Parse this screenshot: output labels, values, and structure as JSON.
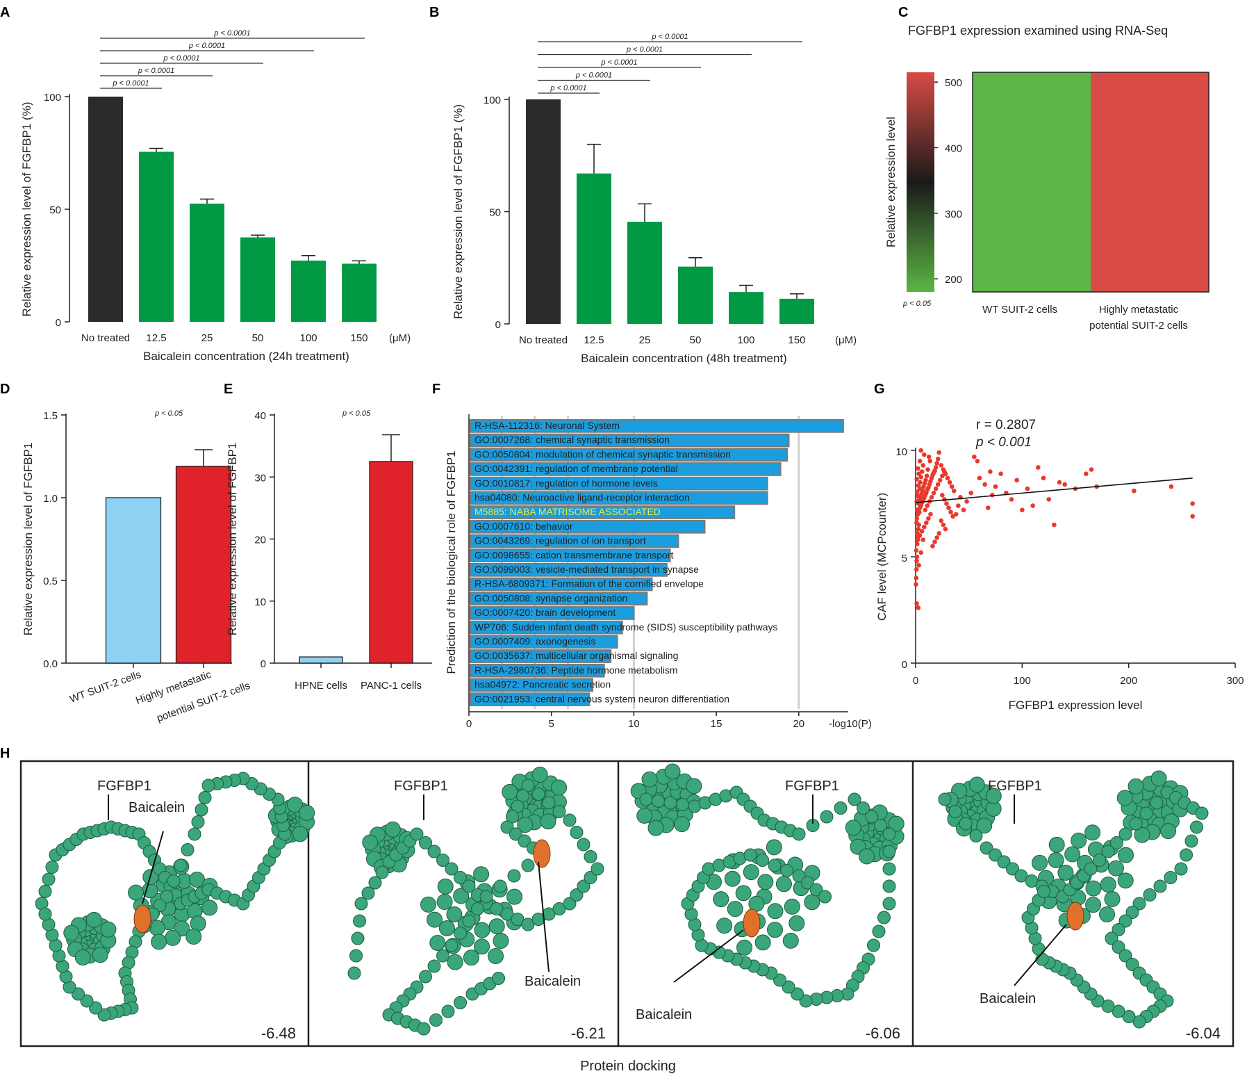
{
  "colors": {
    "black_bar": "#2b2b2b",
    "green_bar": "#009a44",
    "light_blue": "#8fd3f4",
    "red": "#e0222a",
    "go_bar": "#1a9ee0",
    "heat_green": "#5cb544",
    "heat_red": "#d94b45",
    "scatter": "#e8392c",
    "protein": "#3aa67a",
    "ligand": "#e0702a",
    "green_label": "#1e9a3a",
    "orange_label": "#d06a24"
  },
  "chart_data": [
    {
      "id": "A",
      "panel_label": "A",
      "type": "bar",
      "categories": [
        "No treated",
        "12.5",
        "25",
        "50",
        "100",
        "150"
      ],
      "unit": "(μM)",
      "values": [
        100,
        75.5,
        52.5,
        37.5,
        27.2,
        25.8
      ],
      "errors": [
        0,
        1.5,
        2,
        1,
        2.2,
        1.3
      ],
      "xlabel": "Baicalein concentration (24h treatment)",
      "ylabel": "Relative expression level of FGFBP1 (%)",
      "ylim": [
        0,
        100
      ],
      "yticks": [
        "0",
        "50",
        "100"
      ],
      "sig_label": "p < 0.0001"
    },
    {
      "id": "B",
      "panel_label": "B",
      "type": "bar",
      "categories": [
        "No treated",
        "12.5",
        "25",
        "50",
        "100",
        "150"
      ],
      "unit": "(μM)",
      "values": [
        100,
        67,
        45.5,
        25.5,
        14.2,
        11.2
      ],
      "errors": [
        0,
        13,
        8,
        4,
        3,
        2.2
      ],
      "xlabel": "Baicalein concentration (48h treatment)",
      "ylabel": "Relative expression level of FGFBP1 (%)",
      "ylim": [
        0,
        100
      ],
      "yticks": [
        "0",
        "50",
        "100"
      ],
      "sig_label": "p < 0.0001"
    },
    {
      "id": "C",
      "panel_label": "C",
      "type": "heatmap",
      "title": "FGFBP1 expression examined using RNA-Seq",
      "colorbar_label": "Relative expression level",
      "colorbar_ticks": [
        "500",
        "400",
        "300",
        "200"
      ],
      "colorbar_range": [
        180,
        515
      ],
      "categories": [
        "WT SUIT-2 cells",
        "Highly metastatic potential SUIT-2 cells"
      ],
      "values": [
        185,
        510
      ],
      "p_label": "p < 0.05"
    },
    {
      "id": "D",
      "panel_label": "D",
      "type": "bar",
      "categories": [
        "WT SUIT-2 cells",
        "Highly metastatic potential SUIT-2 cells"
      ],
      "values": [
        1.0,
        1.19
      ],
      "errors": [
        0,
        0.1
      ],
      "ylabel": "Relative expression level of FGFBP1",
      "ylim": [
        0,
        1.5
      ],
      "yticks": [
        "0.0",
        "0.5",
        "1.0",
        "1.5"
      ],
      "p_label": "p < 0.05"
    },
    {
      "id": "E",
      "panel_label": "E",
      "type": "bar",
      "categories": [
        "HPNE cells",
        "PANC-1 cells"
      ],
      "values": [
        1.0,
        32.5
      ],
      "errors": [
        0,
        4.3
      ],
      "ylabel": "Relative expression level of FGFBP1",
      "ylim": [
        0,
        40
      ],
      "yticks": [
        "0",
        "10",
        "20",
        "30",
        "40"
      ],
      "p_label": "p < 0.05"
    },
    {
      "id": "F",
      "panel_label": "F",
      "type": "bar",
      "orientation": "horizontal",
      "ylabel": "Prediction of the biological role of FGFBP1",
      "xlabel": "-log10(P)",
      "xlim": [
        0,
        23
      ],
      "xticks": [
        "0",
        "5",
        "10",
        "15",
        "20"
      ],
      "terms": [
        "R-HSA-112316: Neuronal System",
        "GO:0007268: chemical synaptic transmission",
        "GO:0050804: modulation of chemical synaptic transmission",
        "GO:0042391: regulation of membrane potential",
        "GO:0010817: regulation of hormone levels",
        "hsa04080: Neuroactive ligand-receptor interaction",
        "M5885: NABA MATRISOME ASSOCIATED",
        "GO:0007610: behavior",
        "GO:0043269: regulation of ion transport",
        "GO:0098655: cation transmembrane transport",
        "GO:0099003: vesicle-mediated transport in synapse",
        "R-HSA-6809371: Formation of the cornified envelope",
        "GO:0050808: synapse organization",
        "GO:0007420: brain development",
        "WP706: Sudden infant death syndrome (SIDS) susceptibility pathways",
        "GO:0007409: axonogenesis",
        "GO:0035637: multicellular organismal signaling",
        "R-HSA-2980736: Peptide hormone metabolism",
        "hsa04972: Pancreatic secretion",
        "GO:0021953: central nervous system neuron differentiation"
      ],
      "values": [
        22.7,
        19.4,
        19.3,
        18.9,
        18.1,
        18.1,
        16.1,
        14.3,
        12.7,
        12.2,
        12.0,
        11.1,
        10.8,
        10.0,
        9.3,
        9.0,
        8.6,
        8.2,
        7.5,
        7.3
      ],
      "highlight_index": 6
    },
    {
      "id": "G",
      "panel_label": "G",
      "type": "scatter",
      "xlabel": "FGFBP1 expression level",
      "ylabel": "CAF level (MCPcounter)",
      "xlim": [
        0,
        300
      ],
      "ylim": [
        0,
        10
      ],
      "xticks": [
        "0",
        "100",
        "200",
        "300"
      ],
      "yticks": [
        "0",
        "5",
        "10"
      ],
      "r_label": "r = 0.2807",
      "p_label": "p < 0.001",
      "fit_line": {
        "x0": 0,
        "y0": 7.55,
        "x1": 260,
        "y1": 8.7
      },
      "points": [
        [
          0.3,
          3.7
        ],
        [
          0.5,
          4.0
        ],
        [
          0.8,
          4.4
        ],
        [
          1,
          4.8
        ],
        [
          1.2,
          5.0
        ],
        [
          0.6,
          5.3
        ],
        [
          1.5,
          5.6
        ],
        [
          2,
          5.8
        ],
        [
          1.8,
          6.1
        ],
        [
          2.5,
          6.3
        ],
        [
          3,
          6.5
        ],
        [
          0.9,
          6.6
        ],
        [
          1.2,
          6.8
        ],
        [
          2.2,
          7.0
        ],
        [
          3.5,
          7.1
        ],
        [
          1.6,
          7.2
        ],
        [
          4,
          7.3
        ],
        [
          5,
          7.4
        ],
        [
          2.8,
          7.5
        ],
        [
          6,
          7.55
        ],
        [
          1,
          7.6
        ],
        [
          3.2,
          7.65
        ],
        [
          7,
          7.7
        ],
        [
          8,
          7.75
        ],
        [
          4.5,
          7.8
        ],
        [
          2,
          7.85
        ],
        [
          9,
          7.9
        ],
        [
          5.5,
          7.95
        ],
        [
          10,
          8.0
        ],
        [
          1.4,
          8.05
        ],
        [
          6.5,
          8.1
        ],
        [
          11,
          8.15
        ],
        [
          3.8,
          8.2
        ],
        [
          12,
          8.25
        ],
        [
          7.5,
          8.3
        ],
        [
          2.6,
          8.35
        ],
        [
          13,
          8.4
        ],
        [
          8.5,
          8.45
        ],
        [
          4.2,
          8.5
        ],
        [
          14,
          8.55
        ],
        [
          9.5,
          8.6
        ],
        [
          1.1,
          8.65
        ],
        [
          15,
          8.7
        ],
        [
          5,
          8.75
        ],
        [
          10.5,
          8.8
        ],
        [
          16,
          8.85
        ],
        [
          3,
          8.9
        ],
        [
          17,
          8.95
        ],
        [
          6,
          9.0
        ],
        [
          18,
          9.05
        ],
        [
          11.5,
          9.1
        ],
        [
          2.2,
          9.15
        ],
        [
          19,
          9.2
        ],
        [
          7,
          9.3
        ],
        [
          20,
          9.4
        ],
        [
          4,
          9.5
        ],
        [
          21,
          9.6
        ],
        [
          12.5,
          9.7
        ],
        [
          8,
          9.8
        ],
        [
          22,
          9.9
        ],
        [
          5,
          10.0
        ],
        [
          13.5,
          9.5
        ],
        [
          24,
          9.3
        ],
        [
          26,
          9.1
        ],
        [
          28,
          8.9
        ],
        [
          30,
          8.7
        ],
        [
          32,
          8.5
        ],
        [
          34,
          8.3
        ],
        [
          36,
          8.1
        ],
        [
          25,
          7.9
        ],
        [
          27,
          7.7
        ],
        [
          29,
          7.5
        ],
        [
          31,
          7.3
        ],
        [
          33,
          7.1
        ],
        [
          35,
          6.9
        ],
        [
          24,
          6.7
        ],
        [
          26,
          6.5
        ],
        [
          28,
          6.3
        ],
        [
          22,
          6.1
        ],
        [
          20,
          5.9
        ],
        [
          18,
          5.7
        ],
        [
          16,
          5.5
        ],
        [
          14,
          7.0
        ],
        [
          12,
          6.8
        ],
        [
          10,
          6.6
        ],
        [
          8,
          6.4
        ],
        [
          6,
          6.2
        ],
        [
          4,
          6.0
        ],
        [
          2,
          5.9
        ],
        [
          9,
          7.2
        ],
        [
          11,
          7.4
        ],
        [
          13,
          7.6
        ],
        [
          15,
          7.8
        ],
        [
          17,
          8.0
        ],
        [
          19,
          8.2
        ],
        [
          21,
          8.4
        ],
        [
          23,
          8.6
        ],
        [
          25,
          8.8
        ],
        [
          27,
          9.0
        ],
        [
          38,
          7.0
        ],
        [
          40,
          7.4
        ],
        [
          42,
          7.8
        ],
        [
          45,
          7.2
        ],
        [
          48,
          7.6
        ],
        [
          52,
          8.0
        ],
        [
          55,
          9.7
        ],
        [
          58,
          9.5
        ],
        [
          60,
          8.7
        ],
        [
          65,
          8.4
        ],
        [
          68,
          7.3
        ],
        [
          70,
          9.0
        ],
        [
          72,
          7.9
        ],
        [
          75,
          8.3
        ],
        [
          80,
          8.9
        ],
        [
          85,
          8.0
        ],
        [
          90,
          7.7
        ],
        [
          95,
          8.6
        ],
        [
          100,
          7.2
        ],
        [
          105,
          8.2
        ],
        [
          110,
          7.4
        ],
        [
          115,
          9.2
        ],
        [
          120,
          8.7
        ],
        [
          125,
          7.7
        ],
        [
          130,
          6.5
        ],
        [
          135,
          8.5
        ],
        [
          140,
          8.4
        ],
        [
          150,
          8.2
        ],
        [
          160,
          8.9
        ],
        [
          165,
          9.1
        ],
        [
          170,
          8.3
        ],
        [
          205,
          8.1
        ],
        [
          240,
          8.3
        ],
        [
          260,
          7.5
        ],
        [
          260,
          6.9
        ],
        [
          1,
          2.8
        ],
        [
          2.5,
          2.6
        ],
        [
          5,
          5.2
        ],
        [
          7,
          5.8
        ],
        [
          3,
          4.6
        ]
      ]
    },
    {
      "id": "H",
      "panel_label": "H",
      "type": "image",
      "caption": "Protein docking",
      "protein_label": "FGFBP1",
      "ligand_label": "Baicalein",
      "scores": [
        "-6.48",
        "-6.21",
        "-6.06",
        "-6.04"
      ]
    }
  ]
}
